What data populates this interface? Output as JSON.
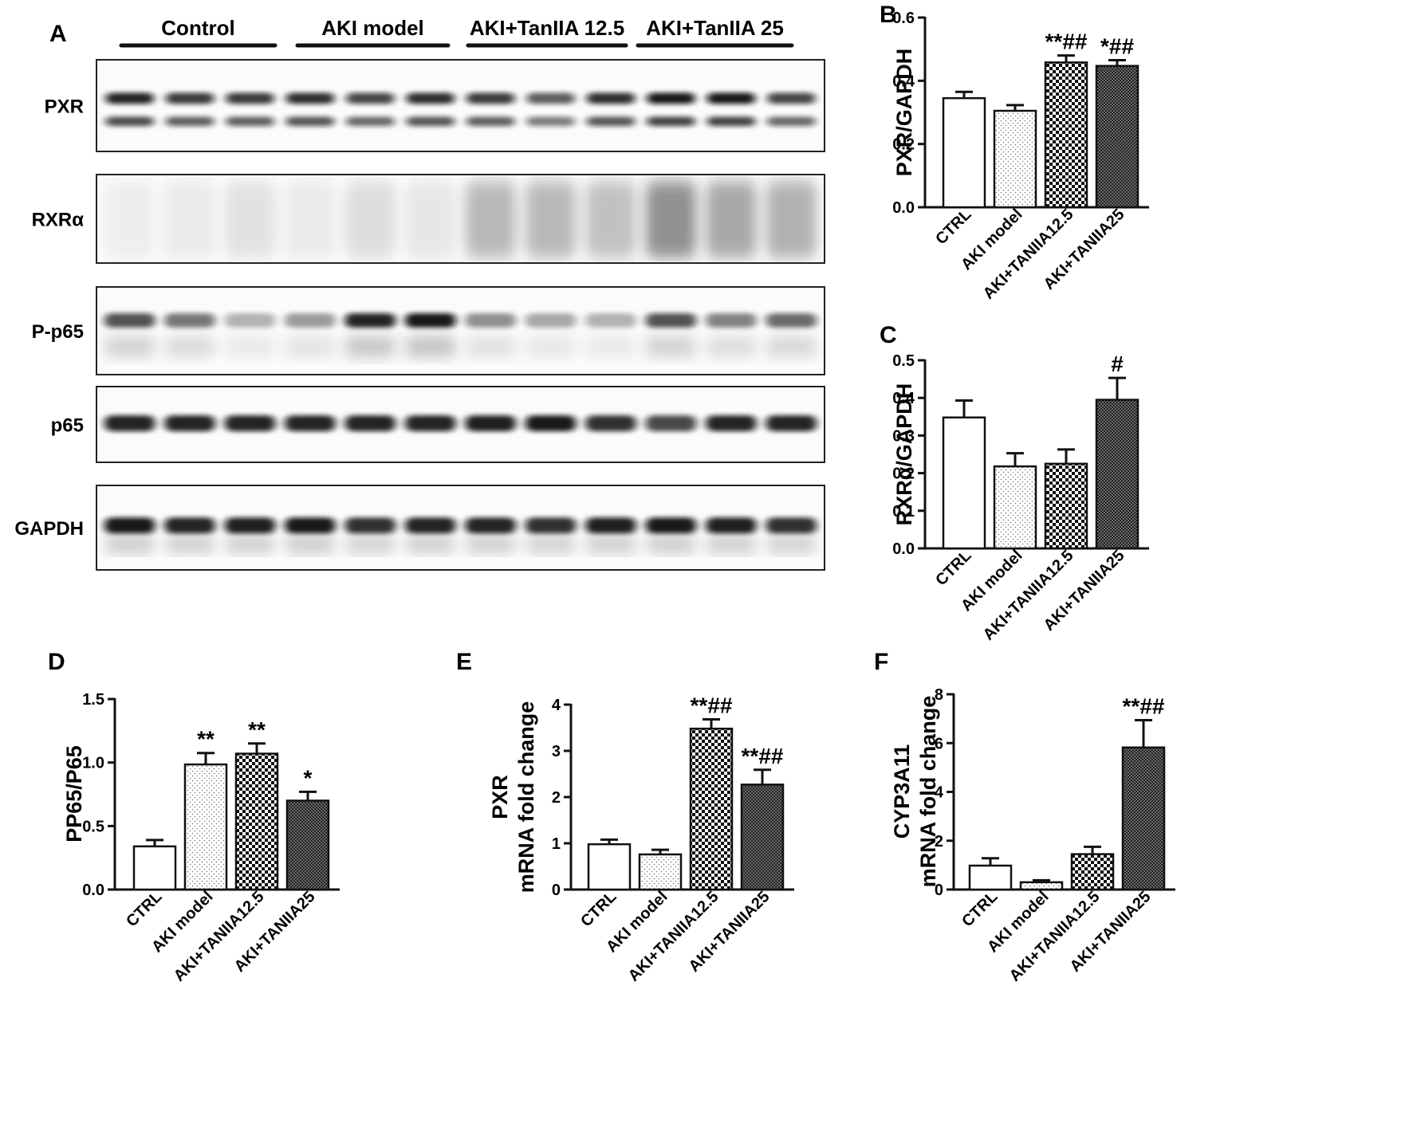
{
  "colors": {
    "ink": "#111111",
    "white": "#ffffff",
    "gray": "#7a7a7a",
    "blot_bg": "#fbfbfb"
  },
  "blot": {
    "panel_letter": "A",
    "groups": [
      "Control",
      "AKI model",
      "AKI+TanIIA 12.5",
      "AKI+TanIIA 25"
    ],
    "rows": [
      {
        "label": "PXR",
        "intensity": [
          0.9,
          0.8,
          0.8,
          0.85,
          0.75,
          0.85,
          0.8,
          0.65,
          0.85,
          0.95,
          0.95,
          0.75
        ]
      },
      {
        "label": "RXRα",
        "intensity": [
          0.08,
          0.1,
          0.15,
          0.1,
          0.18,
          0.12,
          0.4,
          0.4,
          0.35,
          0.65,
          0.5,
          0.45
        ]
      },
      {
        "label": "P-p65",
        "intensity": [
          0.7,
          0.55,
          0.3,
          0.4,
          0.9,
          0.95,
          0.45,
          0.35,
          0.3,
          0.7,
          0.5,
          0.6
        ]
      },
      {
        "label": "p65",
        "intensity": [
          0.9,
          0.9,
          0.9,
          0.9,
          0.9,
          0.9,
          0.92,
          0.95,
          0.85,
          0.75,
          0.9,
          0.9
        ]
      },
      {
        "label": "GAPDH",
        "intensity": [
          0.95,
          0.9,
          0.92,
          0.95,
          0.85,
          0.9,
          0.9,
          0.85,
          0.92,
          0.95,
          0.92,
          0.85
        ]
      }
    ]
  },
  "chart_data": [
    {
      "panel": "B",
      "type": "bar",
      "categories": [
        "CTRL",
        "AKI model",
        "AKI+TANIIA12.5",
        "AKI+TANIIA25"
      ],
      "values": [
        0.345,
        0.305,
        0.458,
        0.447
      ],
      "errors": [
        0.02,
        0.018,
        0.022,
        0.018
      ],
      "annotations": [
        "",
        "",
        "**##",
        "*##"
      ],
      "ylabel": "PXR/GAPDH",
      "ylim": [
        0,
        0.6
      ],
      "yticks": [
        "0.0",
        "0.2",
        "0.4",
        "0.6"
      ]
    },
    {
      "panel": "C",
      "type": "bar",
      "categories": [
        "CTRL",
        "AKI model",
        "AKI+TANIIA12.5",
        "AKI+TANIIA25"
      ],
      "values": [
        0.348,
        0.218,
        0.225,
        0.395
      ],
      "errors": [
        0.045,
        0.035,
        0.038,
        0.058
      ],
      "annotations": [
        "",
        "",
        "",
        "#"
      ],
      "ylabel": "RXRα/GAPDH",
      "ylim": [
        0,
        0.5
      ],
      "yticks": [
        "0.0",
        "0.1",
        "0.2",
        "0.3",
        "0.4",
        "0.5"
      ]
    },
    {
      "panel": "D",
      "type": "bar",
      "categories": [
        "CTRL",
        "AKI model",
        "AKI+TANIIA12.5",
        "AKI+TANIIA25"
      ],
      "values": [
        0.34,
        0.985,
        1.07,
        0.7
      ],
      "errors": [
        0.05,
        0.09,
        0.08,
        0.07
      ],
      "annotations": [
        "",
        "**",
        "**",
        "*"
      ],
      "ylabel": "PP65/P65",
      "ylim": [
        0,
        1.5
      ],
      "yticks": [
        "0.0",
        "0.5",
        "1.0",
        "1.5"
      ]
    },
    {
      "panel": "E",
      "type": "bar",
      "categories": [
        "CTRL",
        "AKI model",
        "AKI+TANIIA12.5",
        "AKI+TANIIA25"
      ],
      "values": [
        0.98,
        0.76,
        3.48,
        2.27
      ],
      "errors": [
        0.1,
        0.1,
        0.2,
        0.32
      ],
      "annotations": [
        "",
        "",
        "**##",
        "**##"
      ],
      "ylabel": "PXR",
      "ylabel2": "mRNA fold change",
      "ylim": [
        0,
        4
      ],
      "yticks": [
        "0",
        "1",
        "2",
        "3",
        "4"
      ]
    },
    {
      "panel": "F",
      "type": "bar",
      "categories": [
        "CTRL",
        "AKI model",
        "AKI+TANIIA12.5",
        "AKI+TANIIA25"
      ],
      "values": [
        0.98,
        0.3,
        1.45,
        5.82
      ],
      "errors": [
        0.3,
        0.08,
        0.3,
        1.12
      ],
      "annotations": [
        "",
        "",
        "",
        "**##"
      ],
      "ylabel": "CYP3A11",
      "ylabel2": "mRNA fold change",
      "ylim": [
        0,
        8
      ],
      "yticks": [
        "0",
        "2",
        "4",
        "6",
        "8"
      ]
    }
  ]
}
